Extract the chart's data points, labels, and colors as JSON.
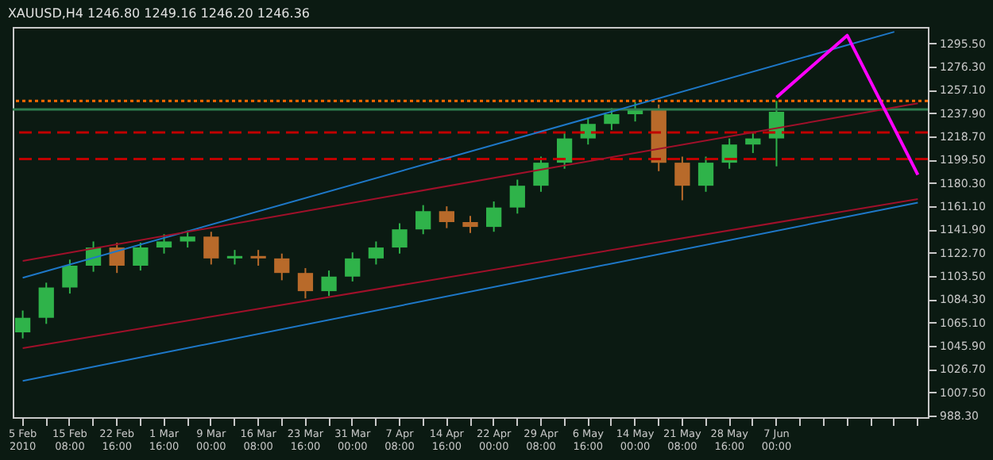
{
  "chart_data": {
    "type": "candlestick",
    "title": "XAUUSD,H4 1246.80 1249.16 1246.20 1246.36",
    "categories": [
      "5 Feb 2010",
      null,
      "15 Feb 08:00",
      null,
      "22 Feb 16:00",
      null,
      "1 Mar 16:00",
      null,
      "9 Mar 00:00",
      null,
      "16 Mar 08:00",
      null,
      "23 Mar 16:00",
      null,
      "31 Mar 00:00",
      null,
      "7 Apr 08:00",
      null,
      "14 Apr 16:00",
      null,
      "22 Apr 00:00",
      null,
      "29 Apr 08:00",
      null,
      "6 May 16:00",
      null,
      "14 May 00:00",
      null,
      "21 May 08:00",
      null,
      "28 May 16:00",
      null,
      "7 Jun 00:00",
      null,
      null,
      null,
      null,
      null,
      null
    ],
    "ohlc": [
      [
        1057,
        1075,
        1052,
        1069
      ],
      [
        1069,
        1098,
        1064,
        1094
      ],
      [
        1094,
        1117,
        1089,
        1112
      ],
      [
        1112,
        1132,
        1107,
        1127
      ],
      [
        1127,
        1131,
        1106,
        1112
      ],
      [
        1112,
        1131,
        1108,
        1127
      ],
      [
        1127,
        1138,
        1122,
        1132
      ],
      [
        1132,
        1141,
        1127,
        1136
      ],
      [
        1136,
        1140,
        1113,
        1118
      ],
      [
        1118,
        1125,
        1113,
        1120
      ],
      [
        1120,
        1125,
        1112,
        1118
      ],
      [
        1118,
        1122,
        1100,
        1106
      ],
      [
        1106,
        1110,
        1085,
        1091
      ],
      [
        1091,
        1108,
        1087,
        1103
      ],
      [
        1103,
        1123,
        1099,
        1118
      ],
      [
        1118,
        1132,
        1113,
        1127
      ],
      [
        1127,
        1147,
        1122,
        1142
      ],
      [
        1142,
        1162,
        1138,
        1157
      ],
      [
        1157,
        1161,
        1143,
        1148
      ],
      [
        1148,
        1153,
        1139,
        1144
      ],
      [
        1144,
        1165,
        1140,
        1160
      ],
      [
        1160,
        1183,
        1155,
        1178
      ],
      [
        1178,
        1202,
        1173,
        1197
      ],
      [
        1197,
        1222,
        1192,
        1217
      ],
      [
        1217,
        1234,
        1212,
        1229
      ],
      [
        1229,
        1242,
        1224,
        1237
      ],
      [
        1237,
        1247,
        1231,
        1241
      ],
      [
        1241,
        1245,
        1190,
        1197
      ],
      [
        1197,
        1202,
        1166,
        1178
      ],
      [
        1178,
        1202,
        1173,
        1197
      ],
      [
        1197,
        1217,
        1192,
        1212
      ],
      [
        1212,
        1222,
        1205,
        1217
      ],
      [
        1217,
        1248,
        1194,
        1239
      ],
      null,
      null,
      null,
      null,
      null,
      null
    ],
    "series": [
      {
        "type": "line",
        "color": "#1e78c8",
        "values": [
          1102,
          null,
          null,
          null,
          null,
          null,
          null,
          null,
          null,
          null,
          null,
          null,
          null,
          null,
          null,
          null,
          null,
          null,
          null,
          null,
          null,
          null,
          null,
          null,
          null,
          null,
          null,
          null,
          null,
          null,
          null,
          null,
          null,
          null,
          null,
          null,
          null,
          1305,
          null
        ]
      },
      {
        "type": "line",
        "color": "#1e78c8",
        "values": [
          1017,
          null,
          null,
          null,
          null,
          null,
          null,
          null,
          null,
          null,
          null,
          null,
          null,
          null,
          null,
          null,
          null,
          null,
          null,
          null,
          null,
          null,
          null,
          null,
          null,
          null,
          null,
          null,
          null,
          null,
          null,
          null,
          null,
          null,
          null,
          null,
          null,
          null,
          1164
        ]
      },
      {
        "type": "line",
        "color": "#a0102a",
        "values": [
          1116,
          null,
          null,
          null,
          null,
          null,
          null,
          null,
          null,
          null,
          null,
          null,
          null,
          null,
          null,
          null,
          null,
          null,
          null,
          null,
          null,
          null,
          null,
          null,
          null,
          null,
          null,
          null,
          null,
          null,
          null,
          null,
          null,
          null,
          null,
          null,
          null,
          null,
          1246
        ]
      },
      {
        "type": "line",
        "color": "#a0102a",
        "values": [
          1044,
          null,
          null,
          null,
          null,
          null,
          null,
          null,
          null,
          null,
          null,
          null,
          null,
          null,
          null,
          null,
          null,
          null,
          null,
          null,
          null,
          null,
          null,
          null,
          null,
          null,
          null,
          null,
          null,
          null,
          null,
          null,
          null,
          null,
          null,
          null,
          null,
          null,
          1167
        ]
      },
      {
        "type": "line",
        "color": "#ff00ff",
        "values": [
          null,
          null,
          null,
          null,
          null,
          null,
          null,
          null,
          null,
          null,
          null,
          null,
          null,
          null,
          null,
          null,
          null,
          null,
          null,
          null,
          null,
          null,
          null,
          null,
          null,
          null,
          null,
          null,
          null,
          null,
          null,
          null,
          1251,
          null,
          null,
          1302,
          null,
          null,
          1187
        ]
      }
    ],
    "ref_lines": [
      {
        "axis": "y",
        "value": 1248,
        "color": "#ff6a00",
        "line_style": "dotted"
      },
      {
        "axis": "y",
        "value": 1241,
        "color": "#2e7d4f",
        "line_style": "solid"
      },
      {
        "axis": "y",
        "value": 1222,
        "color": "#c00000",
        "line_style": "dashed"
      },
      {
        "axis": "y",
        "value": 1200,
        "color": "#c00000",
        "line_style": "dashed"
      }
    ],
    "ylim": [
      987,
      1309
    ],
    "yticks": [
      {
        "value": 988.3,
        "label": "988.30"
      },
      {
        "value": 1007.5,
        "label": "1007.50"
      },
      {
        "value": 1026.7,
        "label": "1026.70"
      },
      {
        "value": 1045.9,
        "label": "1045.90"
      },
      {
        "value": 1065.1,
        "label": "1065.10"
      },
      {
        "value": 1084.3,
        "label": "1084.30"
      },
      {
        "value": 1103.5,
        "label": "1103.50"
      },
      {
        "value": 1122.7,
        "label": "1122.70"
      },
      {
        "value": 1141.9,
        "label": "1141.90"
      },
      {
        "value": 1161.1,
        "label": "1161.10"
      },
      {
        "value": 1180.3,
        "label": "1180.30"
      },
      {
        "value": 1199.5,
        "label": "1199.50"
      },
      {
        "value": 1218.7,
        "label": "1218.70"
      },
      {
        "value": 1237.9,
        "label": "1237.90"
      },
      {
        "value": 1257.1,
        "label": "1257.10"
      },
      {
        "value": 1276.3,
        "label": "1276.30"
      },
      {
        "value": 1295.5,
        "label": "1295.50"
      }
    ],
    "grid": false
  }
}
